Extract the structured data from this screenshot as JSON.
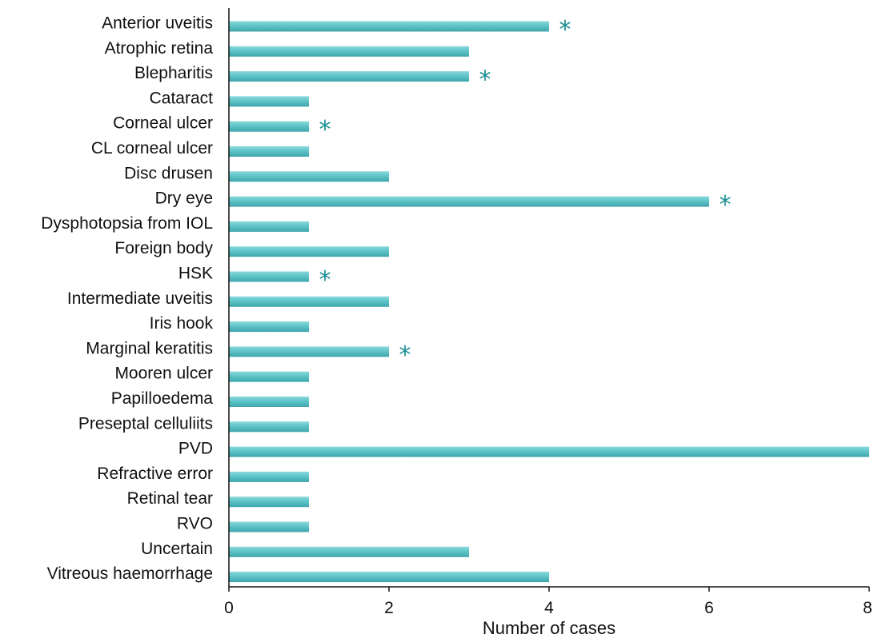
{
  "chart_data": {
    "type": "bar",
    "orientation": "horizontal",
    "categories": [
      "Anterior uveitis",
      "Atrophic retina",
      "Blepharitis",
      "Cataract",
      "Corneal ulcer",
      "CL corneal ulcer",
      "Disc drusen",
      "Dry eye",
      "Dysphotopsia from IOL",
      "Foreign body",
      "HSK",
      "Intermediate uveitis",
      "Iris hook",
      "Marginal keratitis",
      "Mooren ulcer",
      "Papilloedema",
      "Preseptal celluliits",
      "PVD",
      "Refractive error",
      "Retinal tear",
      "RVO",
      "Uncertain",
      "Vitreous haemorrhage"
    ],
    "values": [
      4,
      3,
      3,
      1,
      1,
      1,
      2,
      6,
      1,
      2,
      1,
      2,
      1,
      2,
      1,
      1,
      1,
      8,
      1,
      1,
      1,
      3,
      4
    ],
    "starred": [
      true,
      false,
      true,
      false,
      true,
      false,
      false,
      true,
      false,
      false,
      true,
      false,
      false,
      true,
      false,
      false,
      false,
      false,
      false,
      false,
      false,
      false,
      false
    ],
    "star_symbol": "*",
    "xlabel": "Number of cases",
    "ylabel": "",
    "xlim": [
      0,
      8
    ],
    "xticks": [
      0,
      2,
      4,
      6,
      8
    ],
    "grid": false,
    "legend": "none",
    "colors": {
      "bar": "#5ec4c8",
      "bar_highlight": "#8ad9dc",
      "bar_shadow": "#3fa6ab",
      "star": "#1a8f94",
      "axis": "#111111"
    }
  }
}
